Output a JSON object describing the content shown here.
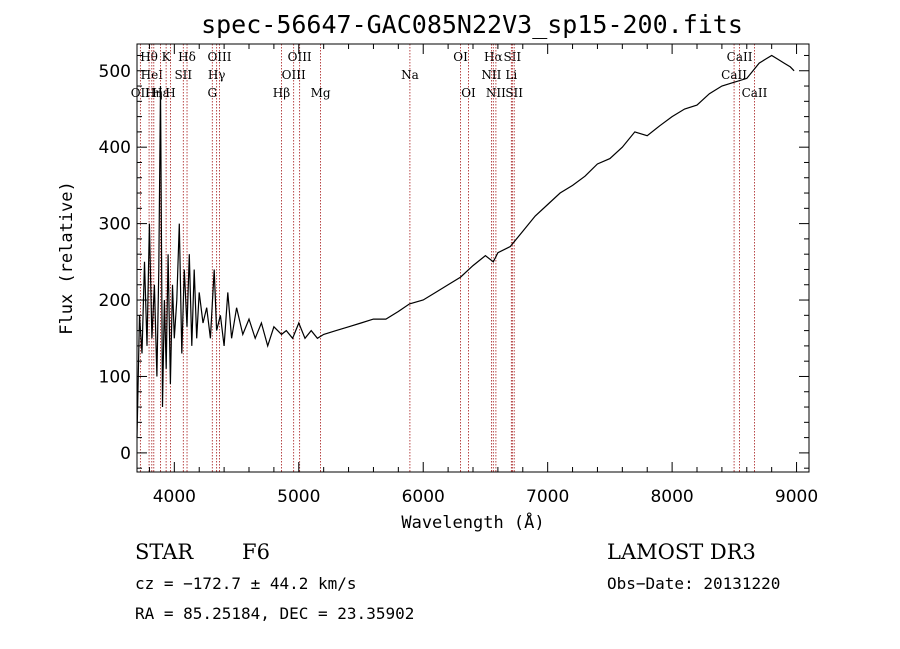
{
  "chart_data": {
    "type": "line",
    "title": "spec-56647-GAC085N22V3_sp15-200.fits",
    "xlabel": "Wavelength (Å)",
    "ylabel": "Flux (relative)",
    "xlim": [
      3700,
      9100
    ],
    "ylim": [
      -25,
      535
    ],
    "xticks": [
      4000,
      5000,
      6000,
      7000,
      8000,
      9000
    ],
    "yticks": [
      0,
      100,
      200,
      300,
      400,
      500
    ],
    "xtick_labels": [
      "4000",
      "5000",
      "6000",
      "7000",
      "8000",
      "9000"
    ],
    "ytick_labels": [
      "0",
      "100",
      "200",
      "300",
      "400",
      "500"
    ],
    "series": [
      {
        "name": "spectrum",
        "x": [
          3700,
          3720,
          3740,
          3760,
          3780,
          3800,
          3820,
          3840,
          3860,
          3875,
          3889,
          3905,
          3920,
          3935,
          3950,
          3968,
          3985,
          4000,
          4020,
          4040,
          4060,
          4080,
          4102,
          4120,
          4140,
          4160,
          4180,
          4200,
          4230,
          4260,
          4290,
          4320,
          4340,
          4370,
          4400,
          4430,
          4460,
          4500,
          4550,
          4600,
          4650,
          4700,
          4750,
          4800,
          4861,
          4900,
          4950,
          5000,
          5050,
          5100,
          5150,
          5200,
          5300,
          5400,
          5500,
          5600,
          5700,
          5800,
          5890,
          6000,
          6100,
          6200,
          6300,
          6400,
          6500,
          6563,
          6600,
          6700,
          6800,
          6900,
          7000,
          7100,
          7200,
          7300,
          7400,
          7500,
          7600,
          7700,
          7800,
          7900,
          8000,
          8100,
          8200,
          8300,
          8400,
          8500,
          8600,
          8650,
          8700,
          8750,
          8800,
          8850,
          8900,
          8950,
          8980
        ],
        "y": [
          20,
          180,
          130,
          250,
          140,
          300,
          150,
          220,
          100,
          240,
          480,
          60,
          200,
          110,
          260,
          90,
          220,
          150,
          200,
          300,
          130,
          240,
          165,
          260,
          140,
          240,
          150,
          210,
          170,
          190,
          150,
          240,
          160,
          180,
          140,
          210,
          150,
          190,
          155,
          175,
          150,
          170,
          140,
          165,
          155,
          160,
          150,
          170,
          150,
          160,
          150,
          155,
          160,
          165,
          170,
          175,
          175,
          185,
          195,
          200,
          210,
          220,
          230,
          245,
          258,
          250,
          262,
          270,
          290,
          310,
          325,
          340,
          350,
          362,
          378,
          385,
          400,
          420,
          415,
          428,
          440,
          450,
          455,
          470,
          480,
          485,
          490,
          500,
          510,
          515,
          520,
          515,
          510,
          505,
          500
        ]
      }
    ],
    "line_markers": [
      {
        "label": "Hθ",
        "x": 3797,
        "row": 0
      },
      {
        "label": "OII",
        "x": 3727,
        "row": 2
      },
      {
        "label": "HeI",
        "x": 3819,
        "row": 1
      },
      {
        "label": "Hη",
        "x": 3835,
        "row": 2
      },
      {
        "label": "Hε",
        "x": 3889,
        "row": 2
      },
      {
        "label": "K",
        "x": 3934,
        "row": 0
      },
      {
        "label": "H",
        "x": 3969,
        "row": 2
      },
      {
        "label": "SII",
        "x": 4072,
        "row": 1
      },
      {
        "label": "Hδ",
        "x": 4102,
        "row": 0
      },
      {
        "label": "OIII",
        "x": 4363,
        "row": 0
      },
      {
        "label": "Hγ",
        "x": 4340,
        "row": 1
      },
      {
        "label": "G",
        "x": 4305,
        "row": 2
      },
      {
        "label": "OIII",
        "x": 5007,
        "row": 0
      },
      {
        "label": "OIII",
        "x": 4959,
        "row": 1
      },
      {
        "label": "Hβ",
        "x": 4861,
        "row": 2
      },
      {
        "label": "Mg",
        "x": 5175,
        "row": 2
      },
      {
        "label": "Na",
        "x": 5893,
        "row": 1
      },
      {
        "label": "OI",
        "x": 6300,
        "row": 0
      },
      {
        "label": "OI",
        "x": 6364,
        "row": 2
      },
      {
        "label": "Hα",
        "x": 6563,
        "row": 0
      },
      {
        "label": "NII",
        "x": 6548,
        "row": 1
      },
      {
        "label": "NII",
        "x": 6584,
        "row": 2
      },
      {
        "label": "SII",
        "x": 6716,
        "row": 0
      },
      {
        "label": "Li",
        "x": 6708,
        "row": 1
      },
      {
        "label": "SII",
        "x": 6731,
        "row": 2
      },
      {
        "label": "CaII",
        "x": 8542,
        "row": 0
      },
      {
        "label": "CaII",
        "x": 8498,
        "row": 1
      },
      {
        "label": "CaII",
        "x": 8662,
        "row": 2
      }
    ]
  },
  "info": {
    "class_label": "STAR",
    "subclass": "F6",
    "survey": "LAMOST DR3",
    "cz_text": "cz = −172.7 ± 44.2 km/s",
    "obs_date_text": "Obs−Date: 20131220",
    "coords_text": "RA =  85.25184, DEC =  23.35902"
  },
  "colors": {
    "line_marker": "#a61b1b",
    "spectrum": "#000000",
    "axes": "#000000"
  }
}
